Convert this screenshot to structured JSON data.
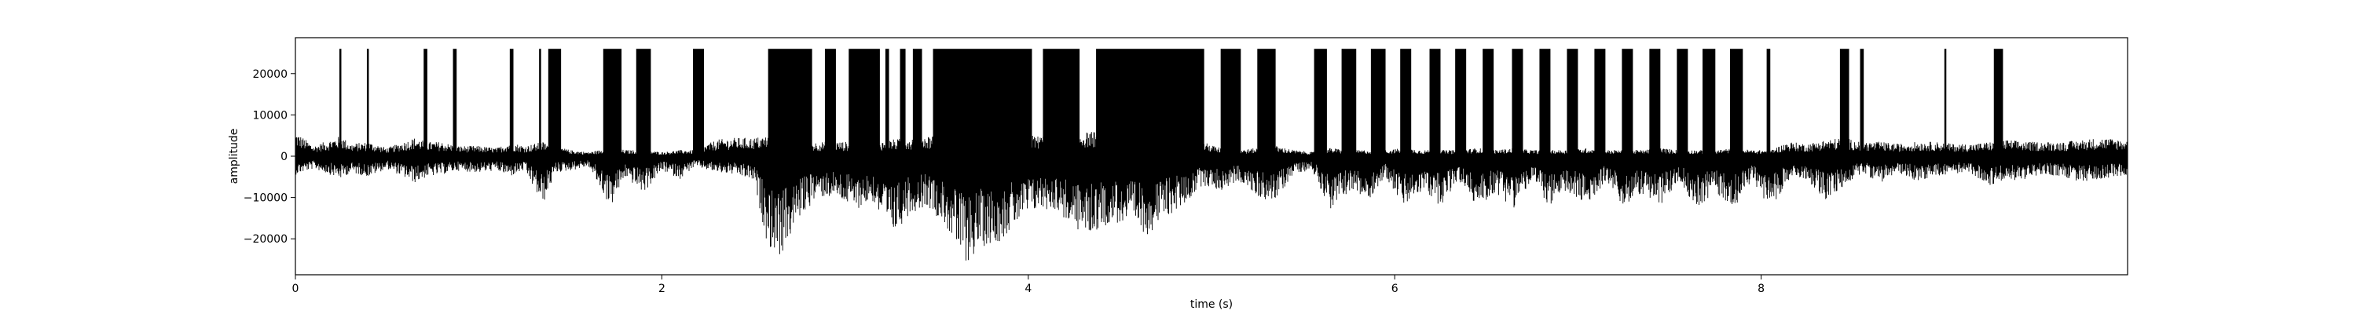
{
  "chart_data": {
    "type": "line",
    "title": "",
    "xlabel": "time (s)",
    "ylabel": "amplitude",
    "xlim": [
      0,
      10
    ],
    "ylim": [
      -28700,
      28700
    ],
    "xticks": [
      0,
      2,
      4,
      6,
      8
    ],
    "yticks": [
      -20000,
      -10000,
      0,
      10000,
      20000
    ],
    "grid": false,
    "line_color": "#000000",
    "clip_level": 26000,
    "envelope": {
      "x": [
        0.0,
        0.1,
        0.25,
        0.3,
        0.4,
        0.5,
        0.65,
        0.72,
        0.8,
        0.88,
        1.0,
        1.1,
        1.17,
        1.25,
        1.35,
        1.42,
        1.5,
        1.6,
        1.72,
        1.8,
        1.9,
        2.0,
        2.1,
        2.18,
        2.3,
        2.4,
        2.5,
        2.58,
        2.65,
        2.75,
        2.85,
        2.95,
        3.05,
        3.15,
        3.25,
        3.35,
        3.45,
        3.55,
        3.65,
        3.75,
        3.85,
        3.95,
        4.05,
        4.15,
        4.25,
        4.35,
        4.45,
        4.55,
        4.65,
        4.75,
        4.85,
        4.95,
        5.05,
        5.15,
        5.25,
        5.35,
        5.45,
        5.55,
        5.65,
        5.75,
        5.85,
        5.95,
        6.05,
        6.15,
        6.25,
        6.35,
        6.45,
        6.55,
        6.65,
        6.75,
        6.85,
        6.95,
        7.05,
        7.15,
        7.25,
        7.35,
        7.45,
        7.55,
        7.65,
        7.75,
        7.85,
        7.95,
        8.05,
        8.15,
        8.25,
        8.35,
        8.45,
        8.55,
        8.65,
        8.75,
        8.85,
        8.95,
        9.05,
        9.15,
        9.25,
        9.35,
        9.45,
        9.55,
        9.65,
        9.75,
        9.85,
        10.0
      ],
      "upper": [
        6000,
        2500,
        5000,
        3000,
        3500,
        2000,
        4500,
        3500,
        3500,
        2500,
        2500,
        2000,
        3500,
        2500,
        3500,
        2500,
        1500,
        1000,
        2000,
        1500,
        1500,
        1000,
        1500,
        1500,
        4000,
        4500,
        4500,
        5000,
        5000,
        3000,
        3500,
        3500,
        3500,
        3500,
        4000,
        4500,
        5000,
        6000,
        7000,
        7500,
        6000,
        5500,
        5000,
        5000,
        5500,
        6000,
        5500,
        5000,
        5500,
        5000,
        4500,
        3500,
        2000,
        1500,
        2000,
        2500,
        1500,
        1000,
        2000,
        1500,
        1500,
        1500,
        2000,
        1500,
        1500,
        1500,
        2000,
        1500,
        2000,
        1500,
        1500,
        1500,
        2000,
        1500,
        1500,
        1500,
        2000,
        1500,
        1500,
        1500,
        2000,
        1500,
        1500,
        3500,
        3000,
        4000,
        4500,
        3500,
        3500,
        3000,
        3500,
        3500,
        3000,
        3000,
        3500,
        4000,
        3500,
        3500,
        3500,
        4000,
        4500,
        4000
      ],
      "lower": [
        -4500,
        -3000,
        -5500,
        -4000,
        -5000,
        -3000,
        -6500,
        -5000,
        -4500,
        -3500,
        -4000,
        -3500,
        -5000,
        -3500,
        -12000,
        -4000,
        -3500,
        -2500,
        -12500,
        -5000,
        -9000,
        -3500,
        -5500,
        -2500,
        -4000,
        -4500,
        -6000,
        -22000,
        -24500,
        -15000,
        -10000,
        -10000,
        -13000,
        -11000,
        -20000,
        -14000,
        -12000,
        -17000,
        -26500,
        -22000,
        -20500,
        -16000,
        -13000,
        -13000,
        -18000,
        -19000,
        -16000,
        -17000,
        -19000,
        -15000,
        -12000,
        -7000,
        -8500,
        -6000,
        -10000,
        -11000,
        -4000,
        -3500,
        -13000,
        -8500,
        -11000,
        -5000,
        -12500,
        -8500,
        -12000,
        -6000,
        -12500,
        -9000,
        -12500,
        -6000,
        -12500,
        -9000,
        -12500,
        -6000,
        -12500,
        -9000,
        -12500,
        -6000,
        -12500,
        -9000,
        -12500,
        -6000,
        -12500,
        -6000,
        -5500,
        -11000,
        -7500,
        -4000,
        -6500,
        -4000,
        -6000,
        -5000,
        -4000,
        -4500,
        -7000,
        -6000,
        -5500,
        -4500,
        -5000,
        -6500,
        -5500,
        -4500
      ]
    },
    "clipped_bursts": [
      [
        0.24,
        0.25
      ],
      [
        0.39,
        0.4
      ],
      [
        0.7,
        0.72
      ],
      [
        0.86,
        0.88
      ],
      [
        1.17,
        1.19
      ],
      [
        1.33,
        1.34
      ],
      [
        1.38,
        1.45
      ],
      [
        1.68,
        1.78
      ],
      [
        1.86,
        1.94
      ],
      [
        2.17,
        2.23
      ],
      [
        2.58,
        2.82
      ],
      [
        2.89,
        2.95
      ],
      [
        3.02,
        3.19
      ],
      [
        3.22,
        3.24
      ],
      [
        3.3,
        3.33
      ],
      [
        3.37,
        3.42
      ],
      [
        3.48,
        4.02
      ],
      [
        4.08,
        4.28
      ],
      [
        4.37,
        4.96
      ],
      [
        5.05,
        5.16
      ],
      [
        5.25,
        5.35
      ],
      [
        5.56,
        5.63
      ],
      [
        5.71,
        5.79
      ],
      [
        5.87,
        5.95
      ],
      [
        6.03,
        6.09
      ],
      [
        6.19,
        6.25
      ],
      [
        6.33,
        6.39
      ],
      [
        6.48,
        6.54
      ],
      [
        6.64,
        6.7
      ],
      [
        6.79,
        6.85
      ],
      [
        6.94,
        7.0
      ],
      [
        7.09,
        7.15
      ],
      [
        7.24,
        7.3
      ],
      [
        7.39,
        7.45
      ],
      [
        7.54,
        7.6
      ],
      [
        7.68,
        7.75
      ],
      [
        7.83,
        7.9
      ],
      [
        8.03,
        8.05
      ],
      [
        8.43,
        8.48
      ],
      [
        8.54,
        8.56
      ],
      [
        9.0,
        9.01
      ],
      [
        9.27,
        9.32
      ]
    ]
  }
}
